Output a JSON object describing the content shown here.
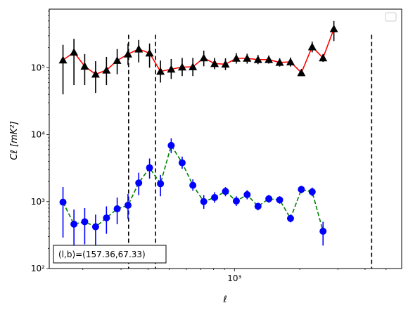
{
  "chart_data": {
    "type": "scatter",
    "x_scale": "log",
    "y_scale": "log",
    "xlim": [
      140,
      5900
    ],
    "ylim": [
      100,
      750000
    ],
    "xlabel": "ℓ",
    "ylabel": "Cℓ  [mK²]",
    "x_tick_labels": [
      {
        "value": 1000,
        "label": "10³"
      }
    ],
    "y_tick_labels": [
      {
        "value": 100,
        "label": "10²"
      },
      {
        "value": 1000,
        "label": "10³"
      },
      {
        "value": 10000,
        "label": "10⁴"
      },
      {
        "value": 100000,
        "label": "10⁵"
      }
    ],
    "annotation": "(l,b)=(157.36,67.33)",
    "legend": {
      "placement": "top-right",
      "entries": []
    },
    "vlines": [
      325,
      433,
      4290
    ],
    "vline_top": 310000,
    "series": [
      {
        "marker": "triangle",
        "marker_color": "#000000",
        "line_color": "#ff0000",
        "line_style": "solid",
        "points": [
          {
            "x": 162,
            "y": 130000,
            "lo": 40000,
            "hi": 220000
          },
          {
            "x": 182,
            "y": 170000,
            "lo": 55000,
            "hi": 270000
          },
          {
            "x": 204,
            "y": 105000,
            "lo": 55000,
            "hi": 160000
          },
          {
            "x": 229,
            "y": 80000,
            "lo": 42000,
            "hi": 125000
          },
          {
            "x": 257,
            "y": 92000,
            "lo": 55000,
            "hi": 145000
          },
          {
            "x": 288,
            "y": 128000,
            "lo": 80000,
            "hi": 190000
          },
          {
            "x": 323,
            "y": 160000,
            "lo": 110000,
            "hi": 230000
          },
          {
            "x": 362,
            "y": 190000,
            "lo": 120000,
            "hi": 260000
          },
          {
            "x": 406,
            "y": 165000,
            "lo": 100000,
            "hi": 230000
          },
          {
            "x": 456,
            "y": 88000,
            "lo": 60000,
            "hi": 128000
          },
          {
            "x": 511,
            "y": 95000,
            "lo": 68000,
            "hi": 135000
          },
          {
            "x": 574,
            "y": 102000,
            "lo": 75000,
            "hi": 140000
          },
          {
            "x": 643,
            "y": 103000,
            "lo": 75000,
            "hi": 140000
          },
          {
            "x": 722,
            "y": 140000,
            "lo": 105000,
            "hi": 180000
          },
          {
            "x": 810,
            "y": 115000,
            "lo": 95000,
            "hi": 140000
          },
          {
            "x": 909,
            "y": 113000,
            "lo": 92000,
            "hi": 138000
          },
          {
            "x": 1020,
            "y": 138000,
            "lo": 115000,
            "hi": 165000
          },
          {
            "x": 1144,
            "y": 138000,
            "lo": 115000,
            "hi": 162000
          },
          {
            "x": 1284,
            "y": 132000,
            "lo": 113000,
            "hi": 155000
          },
          {
            "x": 1440,
            "y": 132000,
            "lo": 115000,
            "hi": 152000
          },
          {
            "x": 1616,
            "y": 120000,
            "lo": 104000,
            "hi": 138000
          },
          {
            "x": 1813,
            "y": 122000,
            "lo": 104000,
            "hi": 142000
          },
          {
            "x": 2034,
            "y": 84000,
            "lo": 75000,
            "hi": 95000
          },
          {
            "x": 2282,
            "y": 205000,
            "lo": 170000,
            "hi": 245000
          },
          {
            "x": 2561,
            "y": 140000,
            "lo": 122000,
            "hi": 160000
          },
          {
            "x": 2873,
            "y": 380000,
            "lo": 250000,
            "hi": 500000
          }
        ]
      },
      {
        "marker": "circle",
        "marker_color": "#0000ff",
        "line_color": "#008000",
        "line_style": "dashed",
        "points": [
          {
            "x": 162,
            "y": 980,
            "lo": 290,
            "hi": 1650
          },
          {
            "x": 182,
            "y": 460,
            "lo": 200,
            "hi": 760
          },
          {
            "x": 204,
            "y": 500,
            "lo": 230,
            "hi": 800
          },
          {
            "x": 229,
            "y": 420,
            "lo": 220,
            "hi": 640
          },
          {
            "x": 257,
            "y": 570,
            "lo": 330,
            "hi": 850
          },
          {
            "x": 288,
            "y": 780,
            "lo": 460,
            "hi": 1150
          },
          {
            "x": 323,
            "y": 880,
            "lo": 550,
            "hi": 1300
          },
          {
            "x": 362,
            "y": 1900,
            "lo": 1250,
            "hi": 2700
          },
          {
            "x": 406,
            "y": 3200,
            "lo": 2200,
            "hi": 4400
          },
          {
            "x": 456,
            "y": 1850,
            "lo": 1200,
            "hi": 2500
          },
          {
            "x": 511,
            "y": 6900,
            "lo": 5300,
            "hi": 8800
          },
          {
            "x": 574,
            "y": 3800,
            "lo": 3100,
            "hi": 4700
          },
          {
            "x": 643,
            "y": 1750,
            "lo": 1450,
            "hi": 2150
          },
          {
            "x": 722,
            "y": 1000,
            "lo": 780,
            "hi": 1250
          },
          {
            "x": 810,
            "y": 1150,
            "lo": 960,
            "hi": 1380
          },
          {
            "x": 909,
            "y": 1420,
            "lo": 1200,
            "hi": 1650
          },
          {
            "x": 1020,
            "y": 1020,
            "lo": 860,
            "hi": 1200
          },
          {
            "x": 1144,
            "y": 1270,
            "lo": 1080,
            "hi": 1480
          },
          {
            "x": 1284,
            "y": 850,
            "lo": 740,
            "hi": 960
          },
          {
            "x": 1440,
            "y": 1100,
            "lo": 960,
            "hi": 1260
          },
          {
            "x": 1616,
            "y": 1060,
            "lo": 930,
            "hi": 1200
          },
          {
            "x": 1813,
            "y": 560,
            "lo": 490,
            "hi": 640
          },
          {
            "x": 2034,
            "y": 1520,
            "lo": 1330,
            "hi": 1720
          },
          {
            "x": 2282,
            "y": 1400,
            "lo": 1200,
            "hi": 1620
          },
          {
            "x": 2561,
            "y": 360,
            "lo": 220,
            "hi": 500
          }
        ]
      }
    ]
  }
}
